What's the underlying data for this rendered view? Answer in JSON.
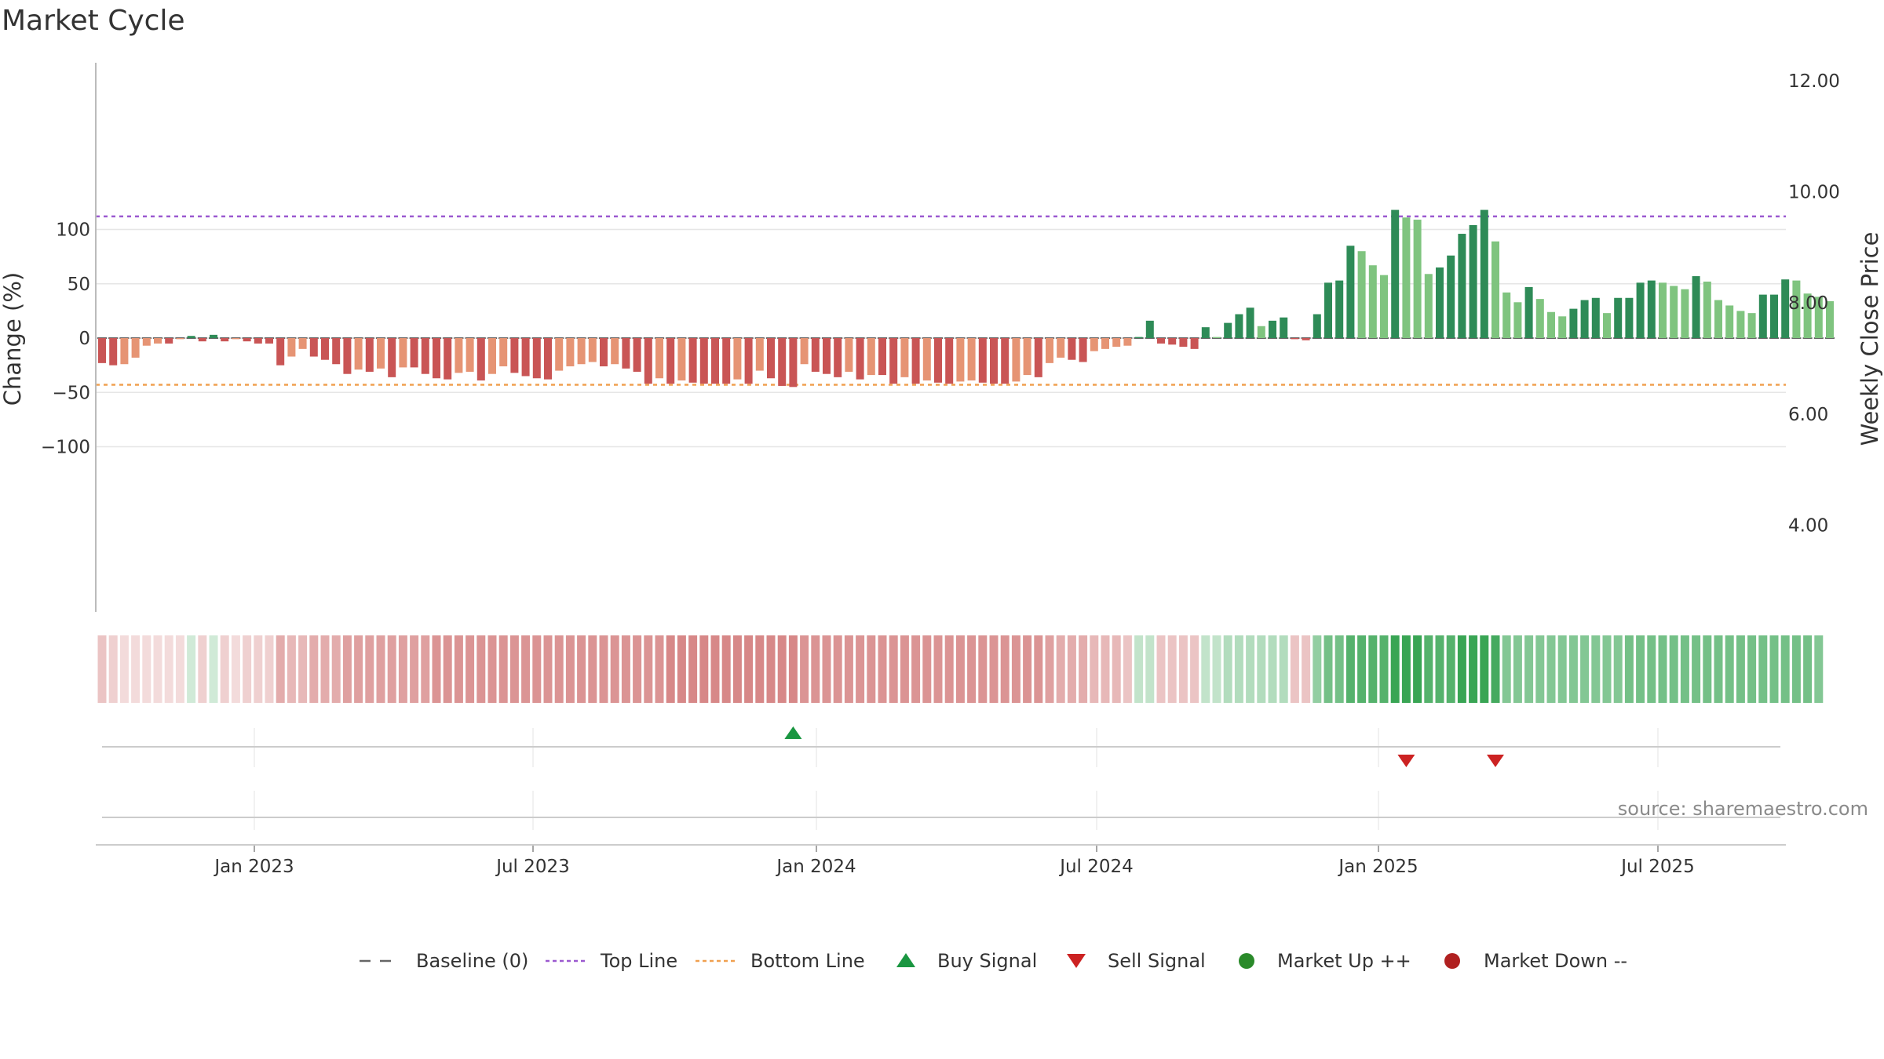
{
  "chart_data": {
    "type": "bar",
    "title": "Market Cycle",
    "ylabel": "Change (%)",
    "y2label": "Weekly Close Price",
    "ylim": [
      -127,
      127
    ],
    "y2lim": [
      2.7,
      12.6
    ],
    "yticks": [
      100,
      50,
      0,
      -50,
      -100
    ],
    "ytick_labels": [
      "100",
      "50",
      "0",
      "−50",
      "−100"
    ],
    "y2ticks": [
      12,
      10,
      8,
      6,
      4
    ],
    "y2tick_labels": [
      "12.00",
      "10.00",
      "8.00",
      "6.00",
      "4.00"
    ],
    "xtick_labels": [
      "Jan 2023",
      "Jul 2023",
      "Jan 2024",
      "Jul 2024",
      "Jan 2025",
      "Jul 2025"
    ],
    "top_line": 112,
    "bottom_line": -43,
    "baseline": 0,
    "values": [
      -23,
      -25,
      -24,
      -18,
      -7,
      -5,
      -5,
      -1,
      2,
      -3,
      3,
      -3,
      -1,
      -3,
      -5,
      -5,
      -25,
      -17,
      -10,
      -17,
      -20,
      -24,
      -33,
      -29,
      -31,
      -28,
      -36,
      -27,
      -27,
      -33,
      -37,
      -38,
      -32,
      -31,
      -39,
      -33,
      -26,
      -32,
      -35,
      -37,
      -38,
      -30,
      -26,
      -24,
      -22,
      -26,
      -24,
      -28,
      -31,
      -42,
      -37,
      -42,
      -39,
      -41,
      -42,
      -42,
      -42,
      -38,
      -42,
      -30,
      -37,
      -44,
      -45,
      -24,
      -31,
      -33,
      -36,
      -31,
      -38,
      -34,
      -34,
      -42,
      -36,
      -42,
      -39,
      -41,
      -42,
      -40,
      -39,
      -41,
      -42,
      -42,
      -40,
      -34,
      -36,
      -23,
      -18,
      -20,
      -22,
      -12,
      -10,
      -8,
      -7,
      1,
      16,
      -5,
      -6,
      -8,
      -10,
      10,
      1,
      14,
      22,
      28,
      11,
      16,
      19,
      -1,
      -2,
      22,
      51,
      53,
      85,
      80,
      67,
      58,
      118,
      111,
      109,
      59,
      65,
      76,
      96,
      104,
      118,
      89,
      42,
      33,
      47,
      36,
      24,
      20,
      27,
      35,
      37,
      23,
      37,
      37,
      51,
      53,
      51,
      48,
      45,
      57,
      52,
      35,
      30,
      25,
      23,
      40,
      40,
      54,
      53,
      41,
      38,
      34
    ],
    "strips": [
      10,
      8,
      6,
      6,
      6,
      6,
      6,
      6,
      -6,
      8,
      -6,
      8,
      6,
      8,
      8,
      8,
      14,
      12,
      12,
      14,
      14,
      14,
      16,
      16,
      16,
      16,
      16,
      16,
      16,
      16,
      18,
      18,
      18,
      18,
      18,
      18,
      18,
      18,
      18,
      18,
      18,
      18,
      18,
      18,
      18,
      18,
      18,
      18,
      18,
      18,
      18,
      20,
      20,
      20,
      20,
      20,
      20,
      20,
      20,
      20,
      20,
      20,
      20,
      18,
      18,
      18,
      18,
      18,
      18,
      18,
      18,
      18,
      18,
      18,
      18,
      18,
      18,
      18,
      18,
      18,
      18,
      18,
      18,
      18,
      18,
      16,
      14,
      14,
      14,
      12,
      12,
      12,
      10,
      -8,
      -8,
      10,
      10,
      10,
      10,
      -8,
      -8,
      -10,
      -10,
      -10,
      -10,
      -10,
      -10,
      10,
      10,
      -14,
      -18,
      -18,
      -22,
      -22,
      -22,
      -22,
      -26,
      -26,
      -26,
      -22,
      -22,
      -22,
      -26,
      -26,
      -26,
      -24,
      -16,
      -16,
      -16,
      -16,
      -16,
      -16,
      -16,
      -16,
      -16,
      -16,
      -16,
      -18,
      -18,
      -18,
      -18,
      -18,
      -18,
      -18,
      -18,
      -18,
      -18,
      -18,
      -18,
      -18,
      -18,
      -18,
      -18,
      -18,
      -16
    ],
    "signals": {
      "buy": [
        "Dec 2023"
      ],
      "sell": [
        "Dec 2024",
        "Feb 2025"
      ]
    },
    "legend": [
      "Baseline (0)",
      "Top Line",
      "Bottom Line",
      "Buy Signal",
      "Sell Signal",
      "Market Up ++",
      "Market Down --"
    ],
    "legend_position": "bottom-center",
    "grid": true,
    "source": "source: sharemaestro.com",
    "colors": {
      "up_dark": "#2e8b57",
      "up_light": "#7fc47f",
      "down_dark": "#c95555",
      "down_light": "#e69474",
      "top_line": "#9b59d0",
      "bottom_line": "#f0a050",
      "buy": "#1a9641",
      "sell": "#cc2222",
      "market_up": "#2a8a2a",
      "market_down": "#b02020"
    }
  }
}
